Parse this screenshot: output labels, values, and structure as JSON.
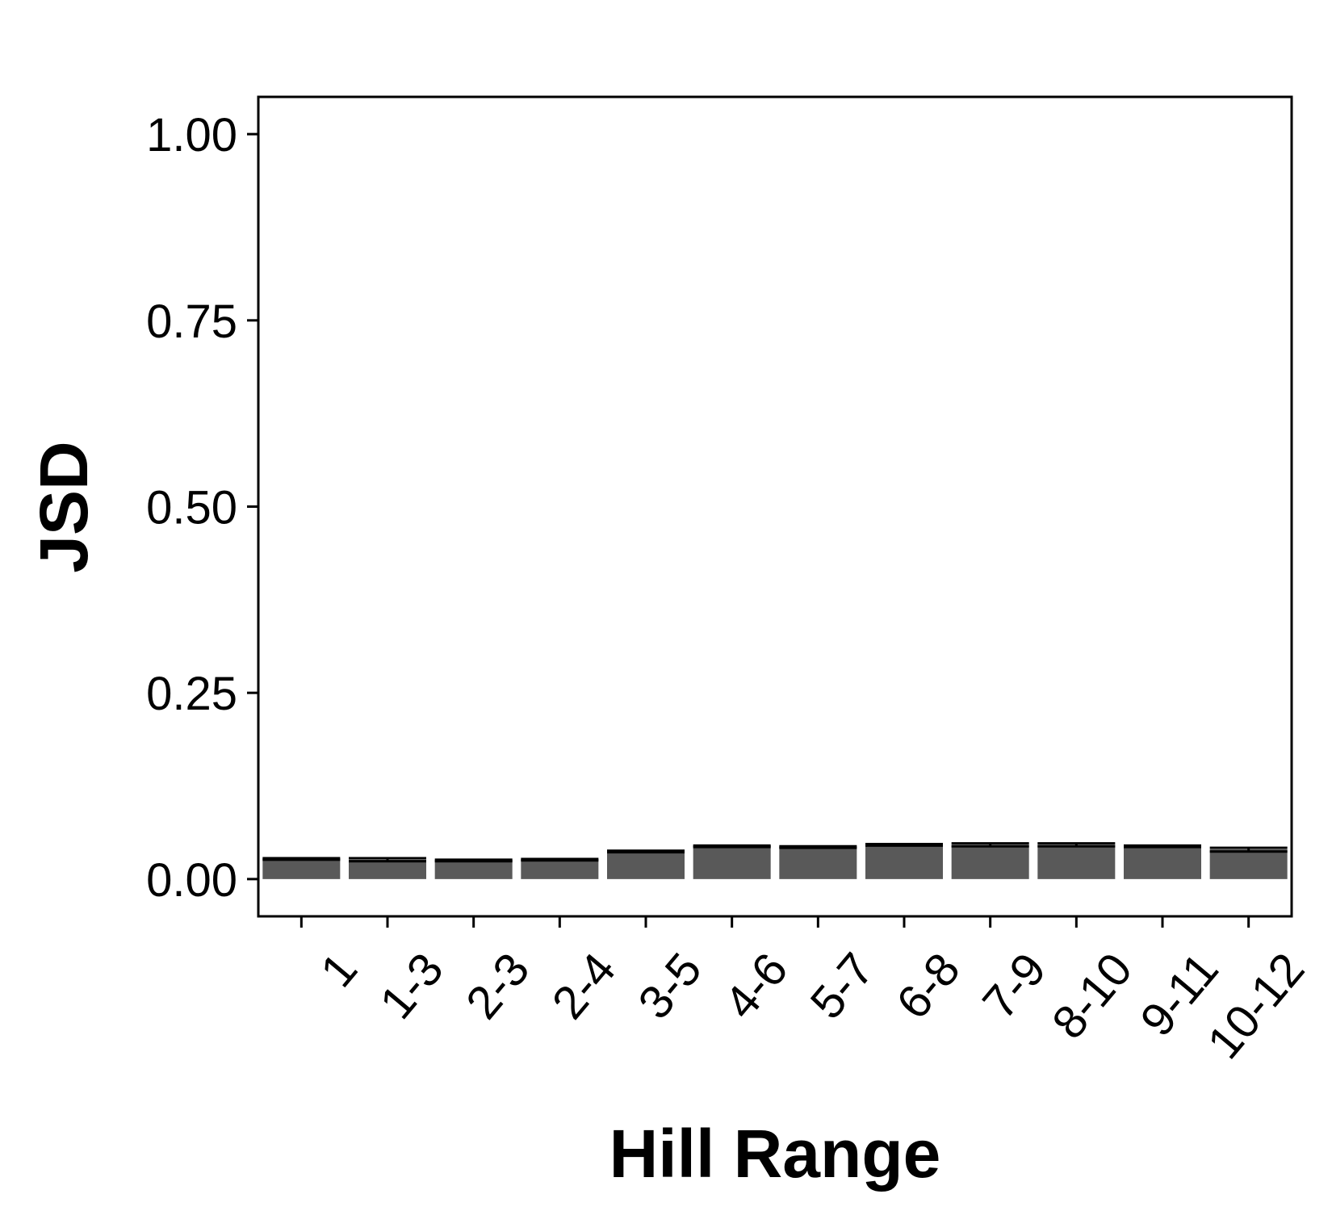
{
  "chart_data": {
    "type": "bar",
    "categories": [
      "1",
      "1-3",
      "2-3",
      "2-4",
      "3-5",
      "4-6",
      "5-7",
      "6-8",
      "7-9",
      "8-10",
      "9-11",
      "10-12"
    ],
    "series": [
      {
        "values": [
          0.027,
          0.026,
          0.025,
          0.026,
          0.037,
          0.044,
          0.043,
          0.046,
          0.046,
          0.046,
          0.044,
          0.04
        ],
        "error_low": [
          0.026,
          0.024,
          0.024,
          0.025,
          0.036,
          0.043,
          0.042,
          0.045,
          0.044,
          0.044,
          0.043,
          0.037
        ],
        "error_high": [
          0.028,
          0.028,
          0.026,
          0.027,
          0.038,
          0.045,
          0.044,
          0.047,
          0.048,
          0.048,
          0.045,
          0.042
        ]
      }
    ],
    "xlabel": "Hill Range",
    "ylabel": "JSD",
    "ylim": [
      -0.05,
      1.05
    ],
    "yticks": [
      "0.00",
      "0.25",
      "0.50",
      "0.75",
      "1.00"
    ],
    "ytick_values": [
      0,
      0.25,
      0.5,
      0.75,
      1.0
    ],
    "bar_color": "#595959",
    "grid": false,
    "legend": "none"
  }
}
